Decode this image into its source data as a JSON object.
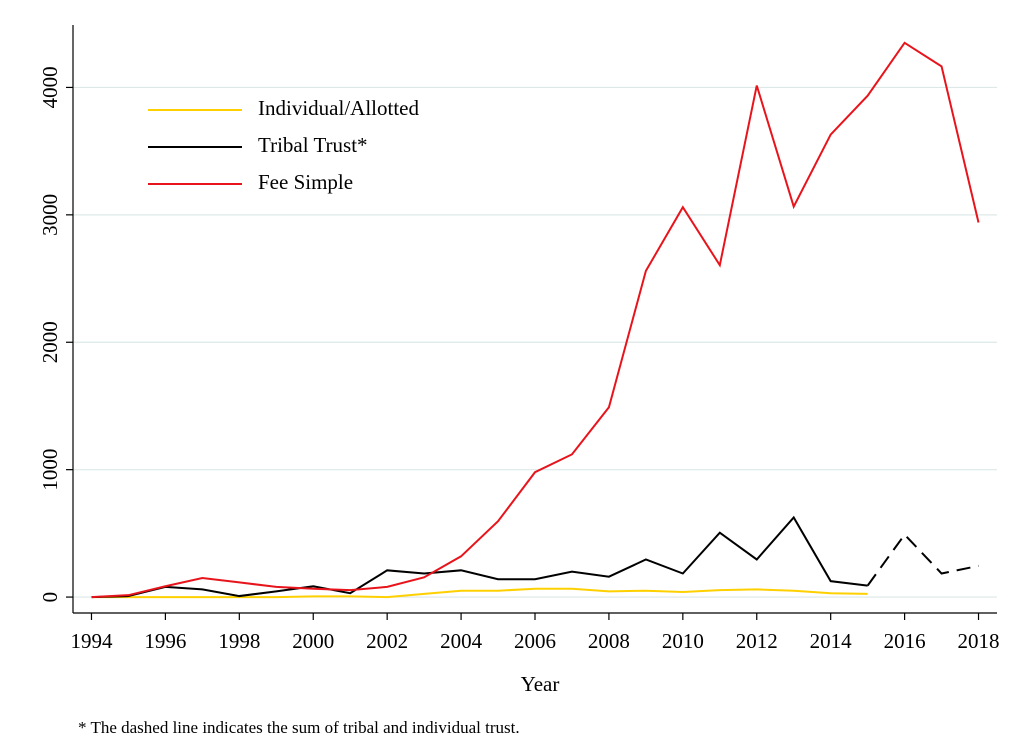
{
  "chart_data": {
    "type": "line",
    "x": [
      1994,
      1995,
      1996,
      1997,
      1998,
      1999,
      2000,
      2001,
      2002,
      2003,
      2004,
      2005,
      2006,
      2007,
      2008,
      2009,
      2010,
      2011,
      2012,
      2013,
      2014,
      2015,
      2016,
      2017,
      2018
    ],
    "series": [
      {
        "name": "Individual/Allotted",
        "color": "#ffd000",
        "values": [
          0,
          0,
          0,
          0,
          0,
          0,
          5,
          5,
          0,
          25,
          50,
          50,
          65,
          65,
          45,
          50,
          40,
          55,
          60,
          50,
          30,
          25,
          null,
          null,
          null
        ]
      },
      {
        "name": "Tribal Trust*",
        "color": "#000000",
        "values": [
          0,
          8,
          80,
          60,
          8,
          45,
          85,
          30,
          210,
          185,
          210,
          140,
          140,
          200,
          160,
          295,
          185,
          505,
          295,
          625,
          125,
          90,
          null,
          null,
          null
        ],
        "dashed_values": [
          null,
          null,
          null,
          null,
          null,
          null,
          null,
          null,
          null,
          null,
          null,
          null,
          null,
          null,
          null,
          null,
          null,
          null,
          null,
          null,
          null,
          90,
          490,
          185,
          245
        ]
      },
      {
        "name": "Fee Simple",
        "color": "#e8141c",
        "values": [
          0,
          15,
          85,
          150,
          115,
          80,
          65,
          55,
          80,
          155,
          320,
          595,
          980,
          1120,
          1490,
          2560,
          3060,
          2605,
          4015,
          3065,
          3630,
          3935,
          4350,
          4165,
          2940
        ]
      }
    ],
    "xlabel": "Year",
    "note": "* The dashed line indicates the sum of tribal and individual trust.",
    "xlim": [
      1993.5,
      2018.5
    ],
    "xticks": [
      1994,
      1996,
      1998,
      2000,
      2002,
      2004,
      2006,
      2008,
      2010,
      2012,
      2014,
      2016,
      2018
    ],
    "ylim": [
      -125,
      4490
    ],
    "yticks": [
      0,
      1000,
      2000,
      3000,
      4000
    ],
    "grid": true,
    "legend": "upper left"
  }
}
